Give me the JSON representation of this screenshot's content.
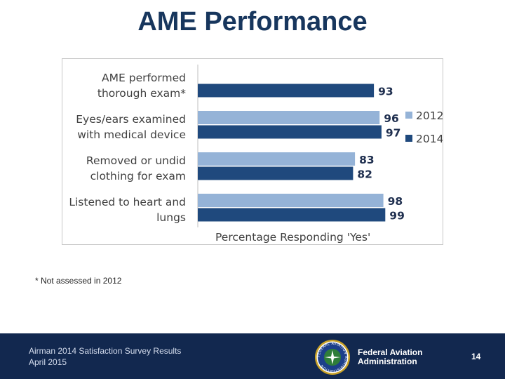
{
  "slide": {
    "title": "AME Performance",
    "footnote": "* Not assessed in 2012"
  },
  "footer": {
    "survey": "Airman 2014 Satisfaction Survey Results",
    "date": "April 2015",
    "agency_line1": "Federal Aviation",
    "agency_line2": "Administration",
    "page_number": "14",
    "seal_text": "FEDERAL AVIATION ADMINISTRATION"
  },
  "colors": {
    "series_2012": "#95b3d7",
    "series_2014": "#1f497d",
    "footer_bg": "#12284f",
    "title": "#17365d"
  },
  "chart_data": {
    "type": "bar",
    "orientation": "horizontal",
    "categories": [
      [
        "AME performed",
        "thorough exam*"
      ],
      [
        "Eyes/ears examined",
        "with medical device"
      ],
      [
        "Removed or undid",
        "clothing for exam"
      ],
      [
        "Listened to heart and",
        "lungs"
      ]
    ],
    "series": [
      {
        "name": "2012",
        "values": [
          null,
          96,
          83,
          98
        ]
      },
      {
        "name": "2014",
        "values": [
          93,
          97,
          82,
          99
        ]
      }
    ],
    "xlabel": "Percentage Responding 'Yes'",
    "xlim": [
      0,
      100
    ],
    "legend": "right",
    "grid": false
  }
}
